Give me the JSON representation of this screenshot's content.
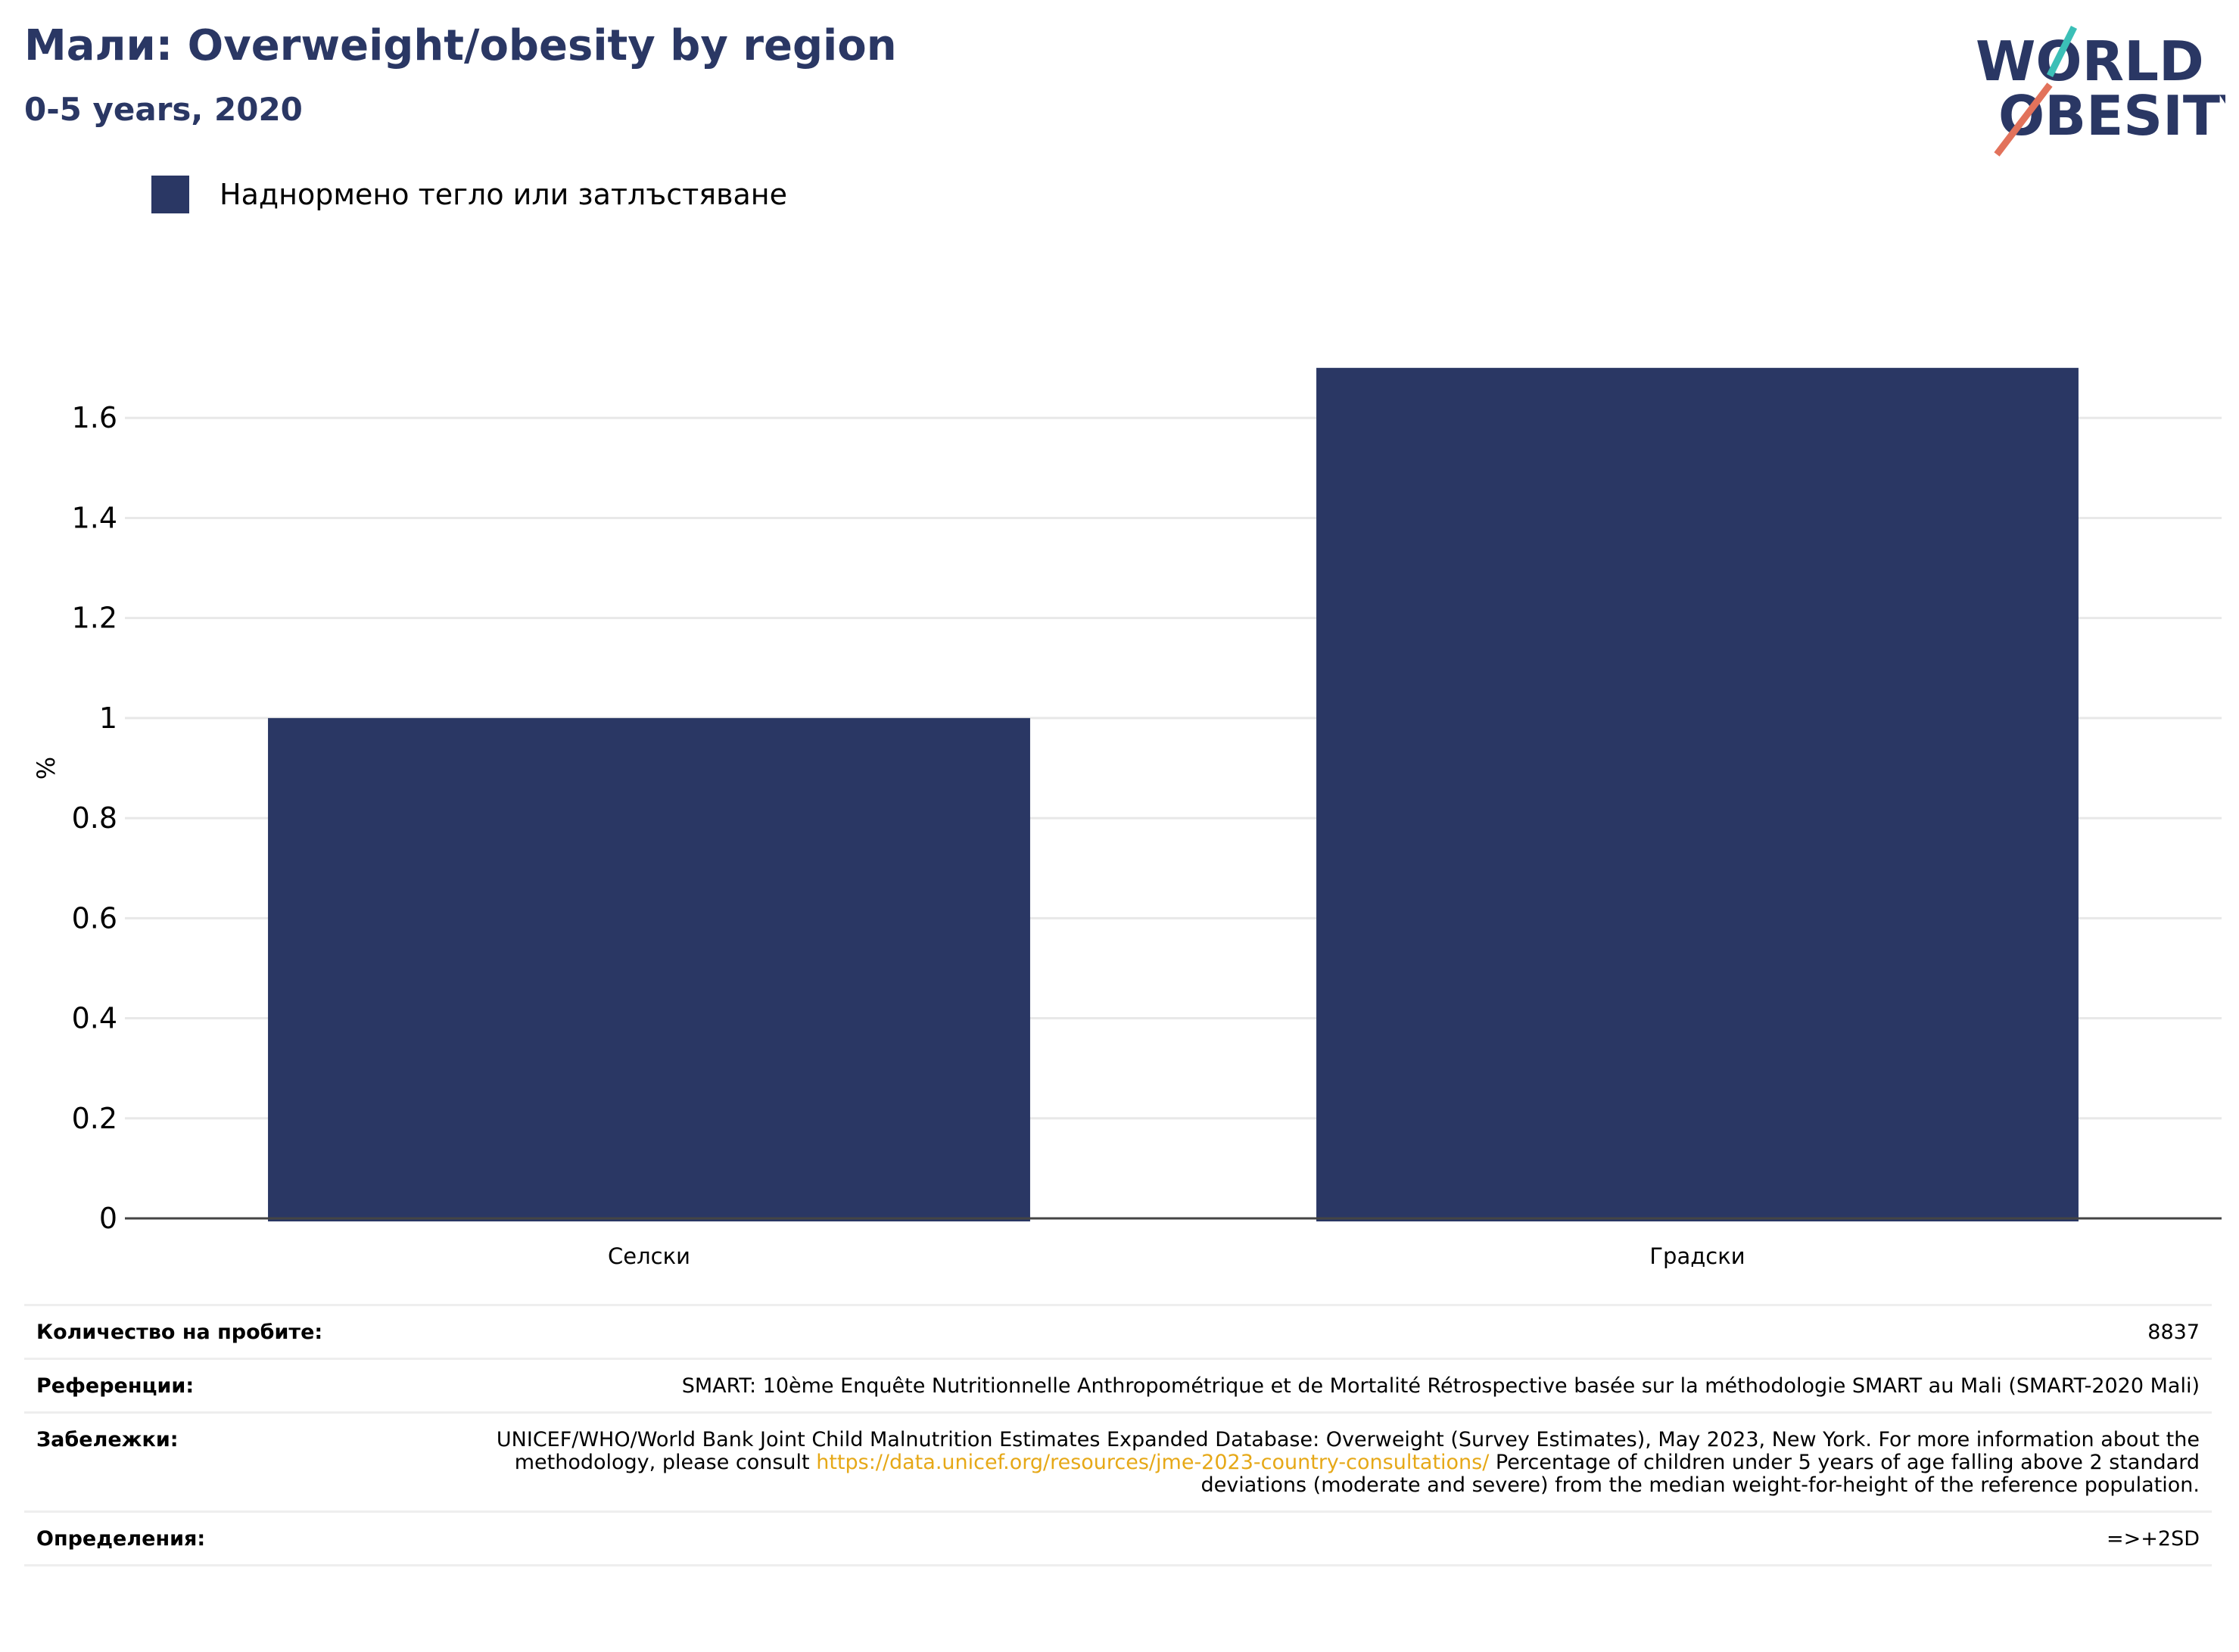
{
  "header": {
    "title": "Мали: Overweight/obesity by region",
    "subtitle": "0-5 years, 2020"
  },
  "logo": {
    "line1": "WORLD",
    "line2": "OBESITY",
    "colors": {
      "text": "#2a3764",
      "slash_top": "#3bbfb7",
      "slash_bottom": "#e2725b"
    }
  },
  "legend": {
    "items": [
      {
        "label": "Наднормено тегло или затлъстяване",
        "color": "#2a3764"
      }
    ]
  },
  "chart_data": {
    "type": "bar",
    "categories": [
      "Селски",
      "Градски"
    ],
    "series": [
      {
        "name": "Наднормено тегло или затлъстяване",
        "values": [
          1.0,
          1.7
        ],
        "color": "#2a3764"
      }
    ],
    "ylabel": "%",
    "xlabel": "",
    "ylim": [
      0,
      1.8
    ],
    "yticks": [
      0,
      0.2,
      0.4,
      0.6,
      0.8,
      1,
      1.2,
      1.4,
      1.6
    ],
    "ytick_labels": [
      "0",
      "0.2",
      "0.4",
      "0.6",
      "0.8",
      "1",
      "1.2",
      "1.4",
      "1.6"
    ],
    "grid": true,
    "legend_position": "top-left"
  },
  "meta": {
    "sample_size": {
      "label": "Количество на пробите:",
      "value": "8837"
    },
    "references": {
      "label": "Референции:",
      "value": "SMART: 10ème Enquête Nutritionnelle Anthropométrique et de Mortalité Rétrospective basée sur la méthodologie SMART au Mali (SMART-2020 Mali)"
    },
    "notes": {
      "label": "Забележки:",
      "before_link": "UNICEF/WHO/World Bank Joint Child Malnutrition Estimates Expanded Database: Overweight (Survey Estimates), May 2023, New York. For more information about the methodology, please consult ",
      "link": "https://data.unicef.org/resources/jme-2023-country-consultations/",
      "after_link": " Percentage of children under 5 years of age falling above 2 standard deviations (moderate and severe) from the median weight-for-height of the reference population."
    },
    "definitions": {
      "label": "Определения:",
      "value": "=>+2SD"
    }
  }
}
